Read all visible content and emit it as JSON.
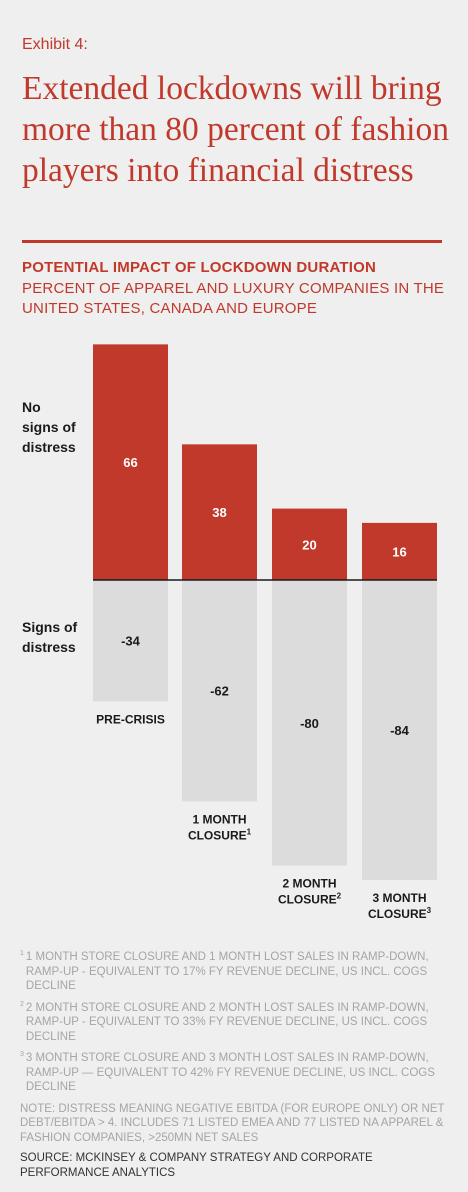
{
  "exhibit": "Exhibit 4:",
  "headline": "Extended lockdowns will bring more than 80 percent of fashion players into financial distress",
  "colors": {
    "accent": "#c0392b",
    "positive_bar": "#c0392b",
    "negative_bar": "#dcdcdc",
    "baseline": "#1a1a1a",
    "background": "#efefef"
  },
  "chart_data": {
    "type": "bar",
    "title": "POTENTIAL IMPACT OF LOCKDOWN DURATION",
    "subtitle": "PERCENT OF APPAREL AND LUXURY COMPANIES IN THE UNITED STATES, CANADA AND EUROPE",
    "categories": [
      {
        "label": "PRE-CRISIS",
        "sup": ""
      },
      {
        "label": "1 MONTH CLOSURE",
        "sup": "1"
      },
      {
        "label": "2 MONTH CLOSURE",
        "sup": "2"
      },
      {
        "label": "3 MONTH CLOSURE",
        "sup": "3"
      }
    ],
    "series": [
      {
        "name": "No signs of distress",
        "values": [
          66,
          38,
          20,
          16
        ]
      },
      {
        "name": "Signs of distress",
        "values": [
          -34,
          -62,
          -80,
          -84
        ]
      }
    ],
    "ylim": [
      -84,
      66
    ],
    "grid": false
  },
  "footnotes": [
    {
      "mark": "1",
      "text": "1 MONTH STORE CLOSURE AND 1 MONTH LOST SALES IN RAMP-DOWN, RAMP-UP - EQUIVALENT TO 17% FY REVENUE DECLINE, US INCL. COGS DECLINE"
    },
    {
      "mark": "2",
      "text": "2 MONTH STORE CLOSURE AND 2 MONTH LOST SALES IN RAMP-DOWN, RAMP-UP - EQUIVALENT TO 33% FY REVENUE DECLINE, US INCL. COGS DECLINE"
    },
    {
      "mark": "3",
      "text": "3 MONTH STORE CLOSURE AND 3 MONTH LOST SALES IN RAMP-DOWN, RAMP-UP — EQUIVALENT TO 42% FY REVENUE DECLINE, US INCL. COGS DECLINE"
    }
  ],
  "note": "NOTE: DISTRESS MEANING NEGATIVE EBITDA (FOR EUROPE ONLY) OR NET DEBT/EBITDA > 4. INCLUDES 71 LISTED EMEA AND 77 LISTED NA APPAREL & FASHION COMPANIES, >250MN NET SALES",
  "source": "SOURCE: MCKINSEY & COMPANY STRATEGY AND CORPORATE PERFORMANCE ANALYTICS"
}
